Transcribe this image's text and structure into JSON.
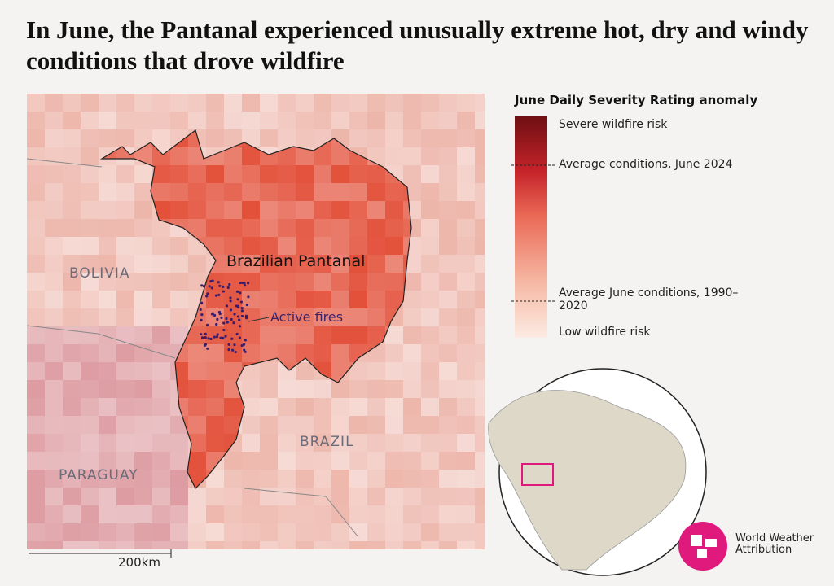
{
  "title": "In June, the Pantanal experienced unusually extreme hot, dry and windy conditions that drove wildfire",
  "map": {
    "labels": {
      "bolivia": "BOLIVIA",
      "paraguay": "PARAGUAY",
      "brazil": "BRAZIL",
      "pantanal": "Brazilian Pantanal",
      "fires": "Active fires"
    },
    "scale": "200km"
  },
  "legend": {
    "title": "June Daily Severity Rating anomaly",
    "items": [
      "Severe wildfire risk",
      "Average conditions, June 2024",
      "Average June conditions, 1990–2020",
      "Low wildfire risk"
    ]
  },
  "logo": "World Weather Attribution"
}
